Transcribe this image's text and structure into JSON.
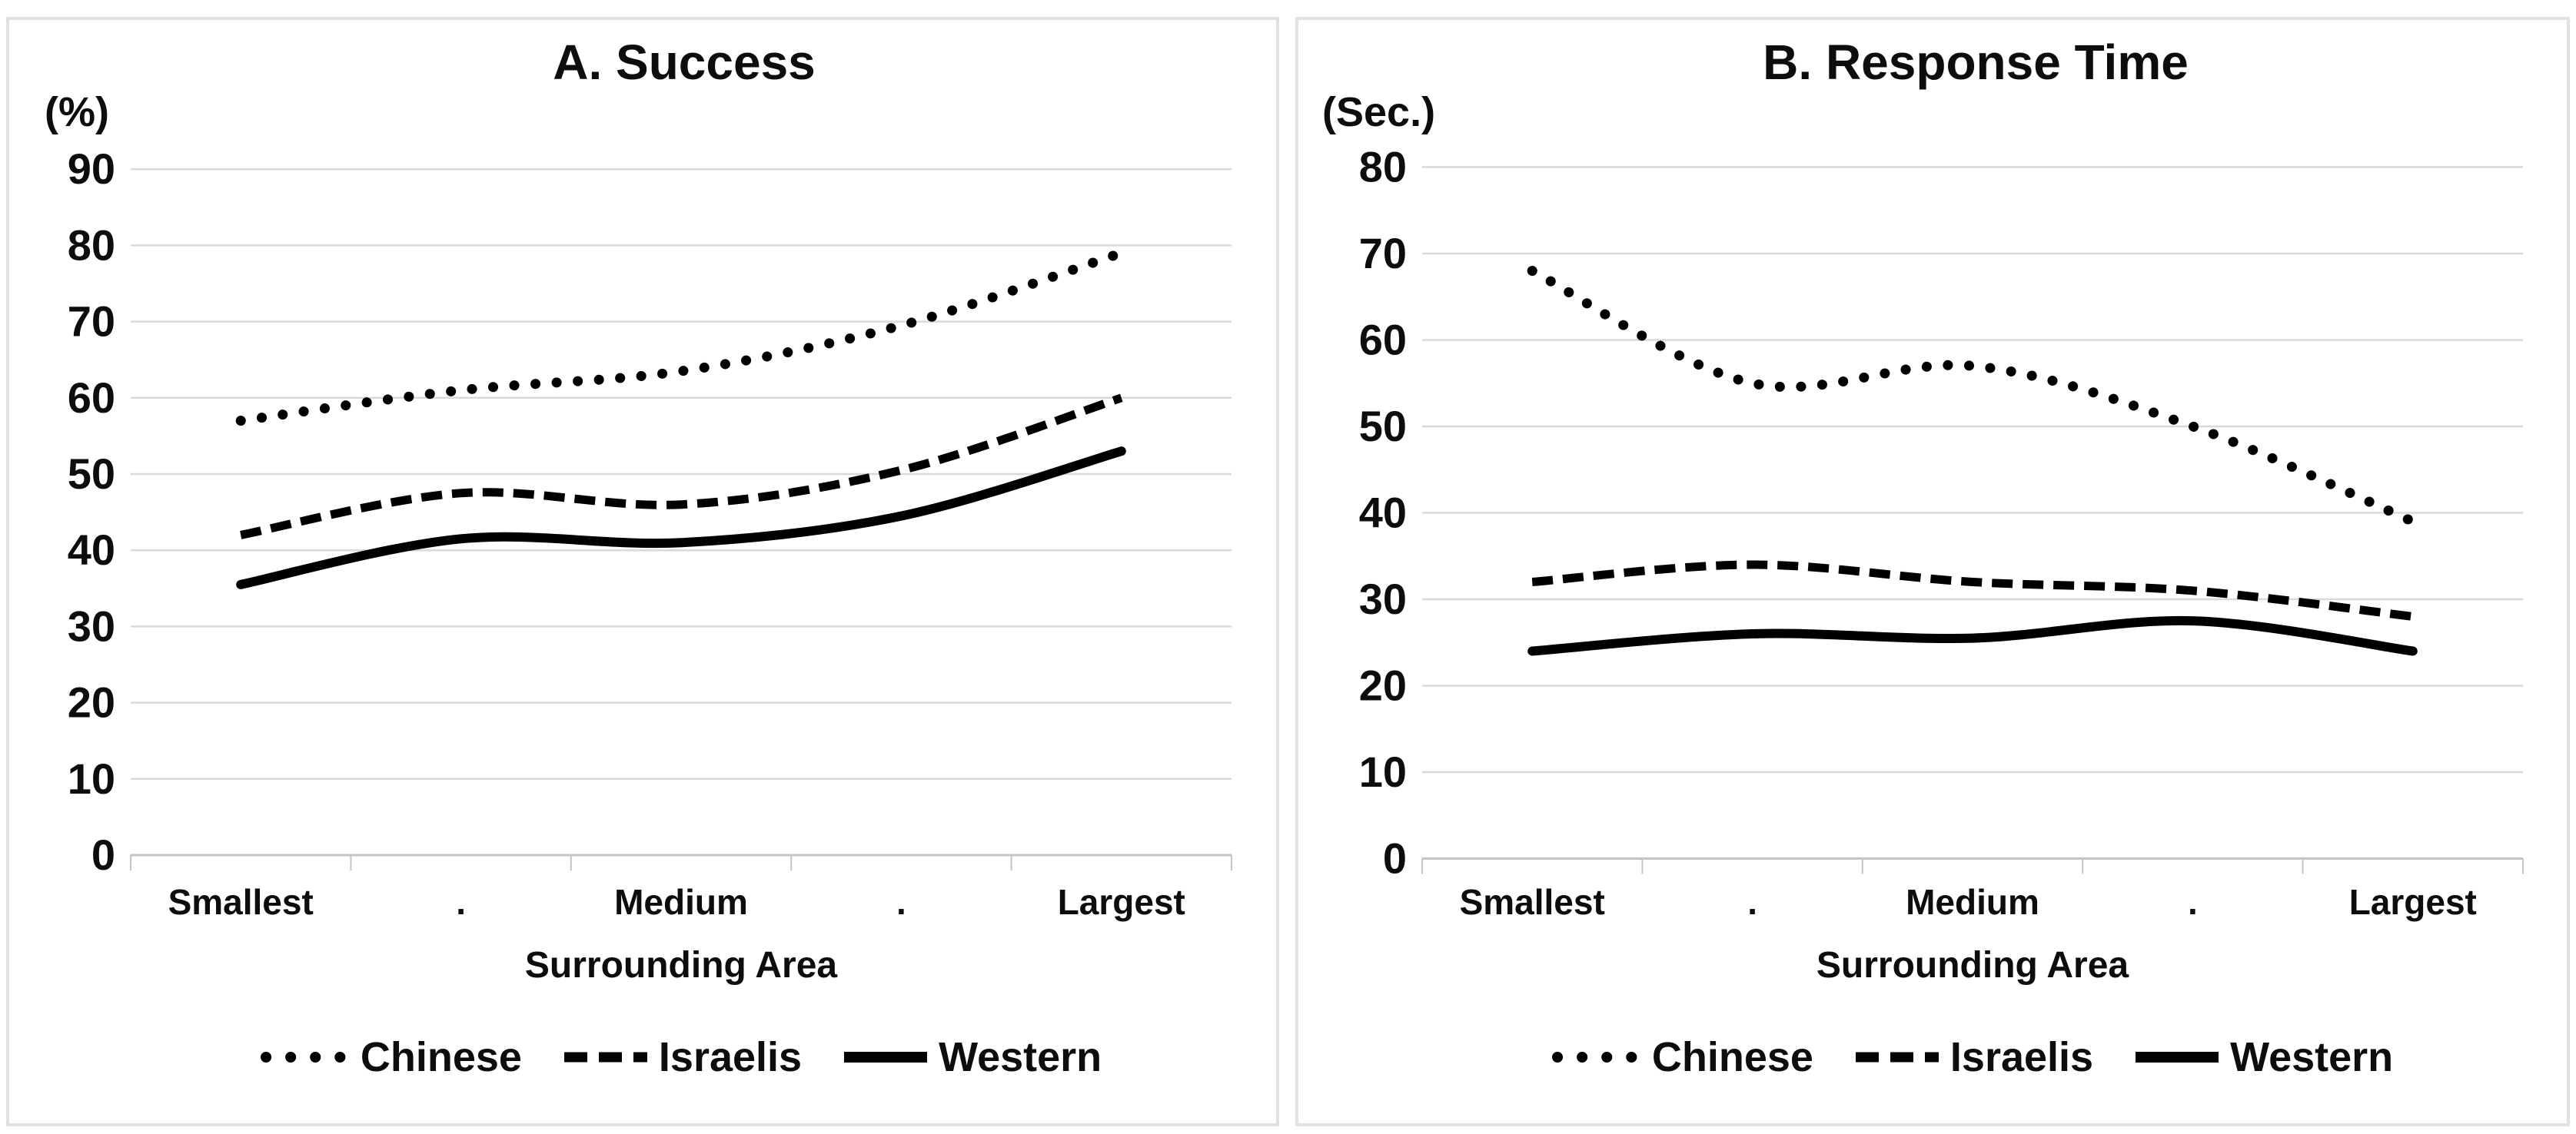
{
  "figure": {
    "background": "#ffffff",
    "panel_border_color": "#e2e2e2"
  },
  "colors": {
    "series_line": "#000000",
    "gridline": "#d9d9d9",
    "axis_line": "#c4c4c4",
    "text": "#0d0d0d"
  },
  "legend": {
    "items": [
      {
        "label": "Chinese",
        "style": "dotted"
      },
      {
        "label": "Israelis",
        "style": "dashed"
      },
      {
        "label": "Western",
        "style": "solid"
      }
    ]
  },
  "chart_data": [
    {
      "type": "line",
      "panel": "A",
      "title": "A. Success",
      "ylabel": "(%)",
      "xlabel": "Surrounding Area",
      "categories": [
        "Smallest",
        ".",
        "Medium",
        ".",
        "Largest"
      ],
      "y_ticks": [
        90,
        80,
        70,
        60,
        50,
        40,
        30,
        20,
        10,
        0
      ],
      "ylim": [
        0,
        90
      ],
      "grid": true,
      "legend_position": "bottom",
      "series": [
        {
          "name": "Chinese",
          "style": "dotted",
          "values": [
            57,
            61,
            63.5,
            69.5,
            79
          ]
        },
        {
          "name": "Israelis",
          "style": "dashed",
          "values": [
            42,
            47.5,
            46,
            50.5,
            60
          ]
        },
        {
          "name": "Western",
          "style": "solid",
          "values": [
            35.5,
            41.5,
            41,
            44.5,
            53
          ]
        }
      ]
    },
    {
      "type": "line",
      "panel": "B",
      "title": "B. Response Time",
      "ylabel": "(Sec.)",
      "xlabel": "Surrounding Area",
      "categories": [
        "Smallest",
        ".",
        "Medium",
        ".",
        "Largest"
      ],
      "y_ticks": [
        80,
        70,
        60,
        50,
        40,
        30,
        20,
        10,
        0
      ],
      "ylim": [
        0,
        80
      ],
      "grid": true,
      "legend_position": "bottom",
      "series": [
        {
          "name": "Chinese",
          "style": "dotted",
          "values": [
            68,
            55,
            57,
            50,
            39
          ]
        },
        {
          "name": "Israelis",
          "style": "dashed",
          "values": [
            32,
            34,
            32,
            31,
            28
          ]
        },
        {
          "name": "Western",
          "style": "solid",
          "values": [
            24,
            26,
            25.5,
            27.5,
            24
          ]
        }
      ]
    }
  ]
}
